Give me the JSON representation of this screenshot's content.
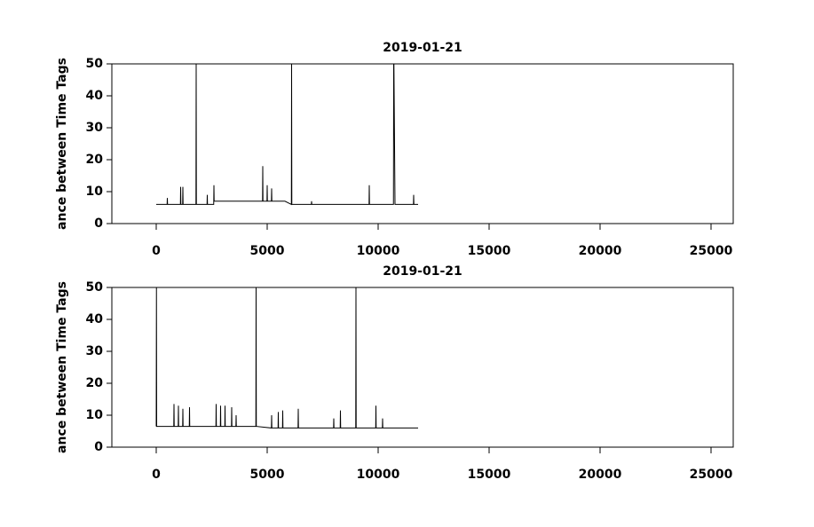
{
  "chart_data": [
    {
      "type": "line",
      "title": "2019-01-21",
      "y_label": "ance between Time Tags",
      "xlim": [
        -2000,
        26000
      ],
      "xticks": [
        0,
        5000,
        10000,
        15000,
        20000,
        25000
      ],
      "ylim": [
        0,
        50
      ],
      "yticks": [
        0,
        10,
        20,
        30,
        40,
        50
      ],
      "series": [
        {
          "color": "#000000",
          "x": [
            0,
            490,
            500,
            510,
            1090,
            1100,
            1110,
            1190,
            1200,
            1210,
            1790,
            1800,
            1810,
            2290,
            2300,
            2310,
            2590,
            2600,
            2610,
            3000,
            4790,
            4800,
            4810,
            4990,
            5000,
            5010,
            5190,
            5200,
            5210,
            5800,
            6090,
            6100,
            6110,
            6990,
            7000,
            7010,
            9590,
            9600,
            9610,
            10690,
            10700,
            10710,
            10760,
            11590,
            11600,
            11610,
            11800
          ],
          "values": [
            6,
            6,
            8,
            6,
            6,
            11.5,
            6,
            6,
            11.5,
            6,
            6,
            50,
            6,
            6,
            9,
            6,
            6,
            12,
            7,
            7,
            7,
            18,
            7,
            7,
            12,
            7,
            7,
            11,
            7,
            7,
            6,
            50,
            6,
            6,
            7,
            6,
            6,
            12,
            6,
            6,
            50,
            50,
            6,
            6,
            9,
            6,
            6
          ]
        }
      ]
    },
    {
      "type": "line",
      "title": "2019-01-21",
      "y_label": "ance between Time Tags",
      "xlim": [
        -2000,
        26000
      ],
      "xticks": [
        0,
        5000,
        10000,
        15000,
        20000,
        25000
      ],
      "ylim": [
        0,
        50
      ],
      "yticks": [
        0,
        10,
        20,
        30,
        40,
        50
      ],
      "series": [
        {
          "color": "#000000",
          "x": [
            0,
            10,
            20,
            790,
            800,
            810,
            990,
            1000,
            1010,
            1190,
            1200,
            1210,
            1490,
            1500,
            1510,
            2690,
            2700,
            2710,
            2890,
            2900,
            2910,
            3090,
            3100,
            3110,
            3390,
            3400,
            3410,
            3590,
            3600,
            3610,
            4490,
            4500,
            4510,
            5190,
            5200,
            5210,
            5490,
            5500,
            5510,
            5690,
            5700,
            5710,
            6390,
            6400,
            6410,
            7990,
            8000,
            8010,
            8290,
            8300,
            8310,
            8990,
            9000,
            9010,
            9890,
            9900,
            9910,
            10190,
            10200,
            10210,
            11800
          ],
          "values": [
            6.5,
            50,
            6.5,
            6.5,
            13.5,
            6.5,
            6.5,
            13,
            6.5,
            6.5,
            12,
            6.5,
            6.5,
            12.5,
            6.5,
            6.5,
            13.5,
            6.5,
            6.5,
            13,
            6.5,
            6.5,
            13,
            6.5,
            6.5,
            12.5,
            6.5,
            6.5,
            10,
            6.5,
            6.5,
            50,
            6.5,
            6,
            10,
            6,
            6,
            11,
            6,
            6,
            11.5,
            6,
            6,
            12,
            6,
            6,
            9,
            6,
            6,
            11.5,
            6,
            6,
            50,
            6,
            6,
            13,
            6,
            6,
            9,
            6,
            6
          ]
        }
      ]
    }
  ]
}
